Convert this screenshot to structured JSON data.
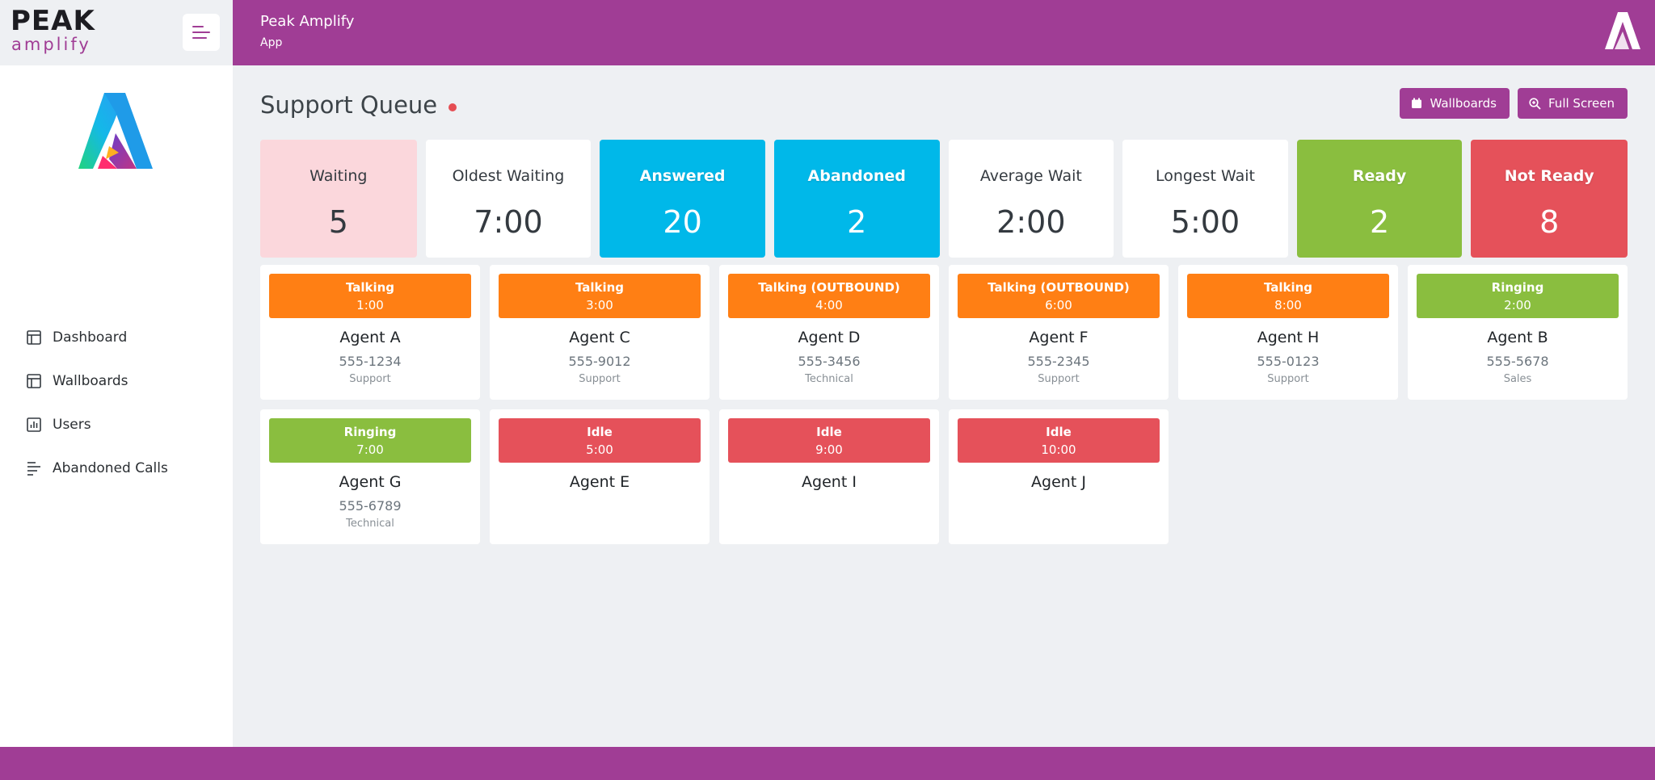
{
  "brand": {
    "line1": "PEAK",
    "line2": "amplify"
  },
  "topbar": {
    "title": "Peak Amplify",
    "subtitle": "App"
  },
  "sidebar": {
    "items": [
      {
        "label": "Dashboard",
        "icon": "layout-icon"
      },
      {
        "label": "Wallboards",
        "icon": "layout-icon"
      },
      {
        "label": "Users",
        "icon": "bar-chart-icon"
      },
      {
        "label": "Abandoned Calls",
        "icon": "align-left-icon"
      }
    ]
  },
  "page": {
    "title": "Support Queue"
  },
  "actions": {
    "wallboards_label": "Wallboards",
    "fullscreen_label": "Full Screen"
  },
  "stats": [
    {
      "label": "Waiting",
      "value": "5",
      "style": "pink"
    },
    {
      "label": "Oldest Waiting",
      "value": "7:00",
      "style": "white"
    },
    {
      "label": "Answered",
      "value": "20",
      "style": "blue"
    },
    {
      "label": "Abandoned",
      "value": "2",
      "style": "blue"
    },
    {
      "label": "Average Wait",
      "value": "2:00",
      "style": "white"
    },
    {
      "label": "Longest Wait",
      "value": "5:00",
      "style": "white"
    },
    {
      "label": "Ready",
      "value": "2",
      "style": "green"
    },
    {
      "label": "Not Ready",
      "value": "8",
      "style": "red"
    }
  ],
  "agents": [
    {
      "status": "Talking",
      "time": "1:00",
      "color": "orange",
      "name": "Agent A",
      "ext": "555-1234",
      "dept": "Support"
    },
    {
      "status": "Talking",
      "time": "3:00",
      "color": "orange",
      "name": "Agent C",
      "ext": "555-9012",
      "dept": "Support"
    },
    {
      "status": "Talking (OUTBOUND)",
      "time": "4:00",
      "color": "orange",
      "name": "Agent D",
      "ext": "555-3456",
      "dept": "Technical"
    },
    {
      "status": "Talking (OUTBOUND)",
      "time": "6:00",
      "color": "orange",
      "name": "Agent F",
      "ext": "555-2345",
      "dept": "Support"
    },
    {
      "status": "Talking",
      "time": "8:00",
      "color": "orange",
      "name": "Agent H",
      "ext": "555-0123",
      "dept": "Support"
    },
    {
      "status": "Ringing",
      "time": "2:00",
      "color": "green",
      "name": "Agent B",
      "ext": "555-5678",
      "dept": "Sales"
    },
    {
      "status": "Ringing",
      "time": "7:00",
      "color": "green",
      "name": "Agent G",
      "ext": "555-6789",
      "dept": "Technical"
    },
    {
      "status": "Idle",
      "time": "5:00",
      "color": "red",
      "name": "Agent E",
      "ext": "",
      "dept": ""
    },
    {
      "status": "Idle",
      "time": "9:00",
      "color": "red",
      "name": "Agent I",
      "ext": "",
      "dept": ""
    },
    {
      "status": "Idle",
      "time": "10:00",
      "color": "red",
      "name": "Agent J",
      "ext": "",
      "dept": ""
    }
  ],
  "colors": {
    "brand": "#a03d95",
    "orange": "#ff7f14",
    "green": "#8abe3f",
    "red": "#e5515a",
    "blue": "#00b8e9",
    "pink": "#fbd7dc"
  }
}
